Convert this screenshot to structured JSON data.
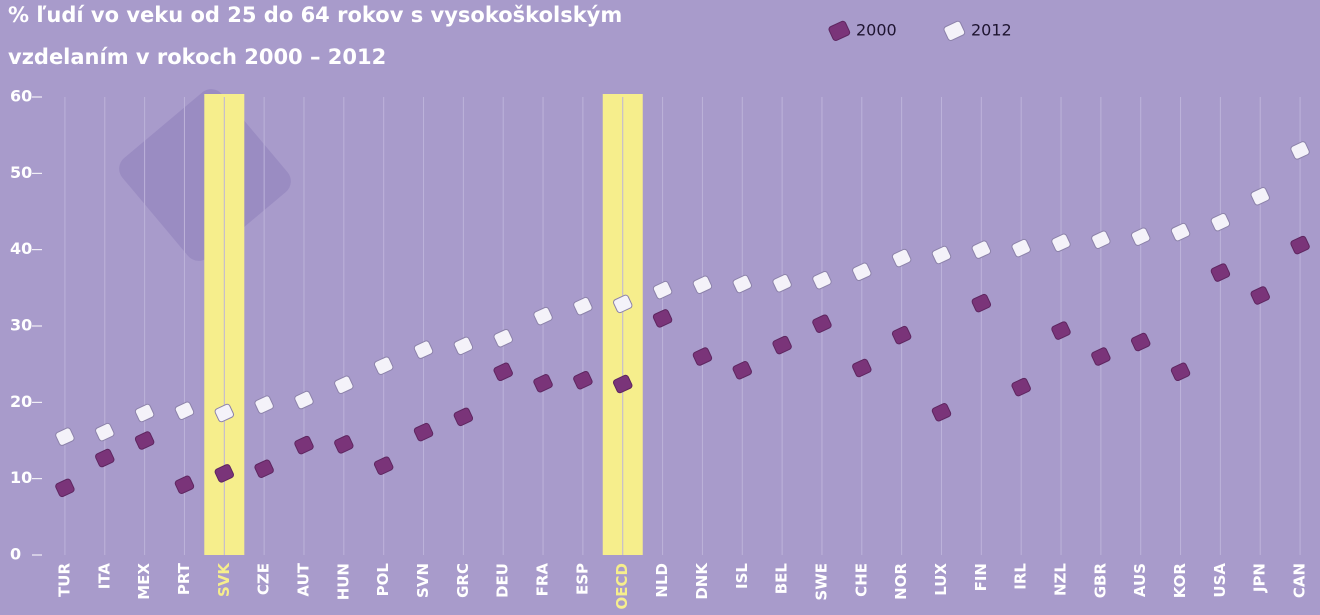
{
  "chart_data": {
    "type": "dot",
    "title": [
      "% ľudí vo veku od 25 do 64 rokov s vysokoškolským",
      "vzdelaním v rokoch 2000 – 2012"
    ],
    "categories": [
      "TUR",
      "ITA",
      "MEX",
      "PRT",
      "SVK",
      "CZE",
      "AUT",
      "HUN",
      "POL",
      "SVN",
      "GRC",
      "DEU",
      "FRA",
      "ESP",
      "OECD",
      "NLD",
      "DNK",
      "ISL",
      "BEL",
      "SWE",
      "CHE",
      "NOR",
      "LUX",
      "FIN",
      "IRL",
      "NZL",
      "GBR",
      "AUS",
      "KOR",
      "USA",
      "JPN",
      "CAN"
    ],
    "series": [
      {
        "name": "2000",
        "color": "#7a3479",
        "values": [
          8.8,
          12.7,
          15,
          9.2,
          10.7,
          11.3,
          14.4,
          14.5,
          11.7,
          16.1,
          18.1,
          24,
          22.5,
          22.9,
          22.4,
          31,
          26,
          24.2,
          27.5,
          30.3,
          24.5,
          28.8,
          18.7,
          33,
          22,
          29.4,
          26,
          27.9,
          24,
          37,
          34,
          40.6
        ]
      },
      {
        "name": "2012",
        "color": "#f4f2f9",
        "values": [
          15.5,
          16.1,
          18.6,
          18.9,
          18.6,
          19.7,
          20.3,
          22.3,
          24.8,
          26.9,
          27.4,
          28.4,
          31.3,
          32.6,
          32.9,
          34.7,
          35.4,
          35.5,
          35.6,
          36,
          37.1,
          38.9,
          39.3,
          40,
          40.2,
          40.9,
          41.3,
          41.7,
          42.3,
          43.6,
          47,
          53
        ]
      }
    ],
    "highlight": [
      4,
      14
    ],
    "highlight_color": "#f6ee8c",
    "ylim": [
      0,
      60
    ],
    "yticks": [
      0,
      10,
      20,
      30,
      40,
      50,
      60
    ],
    "grid": true
  }
}
